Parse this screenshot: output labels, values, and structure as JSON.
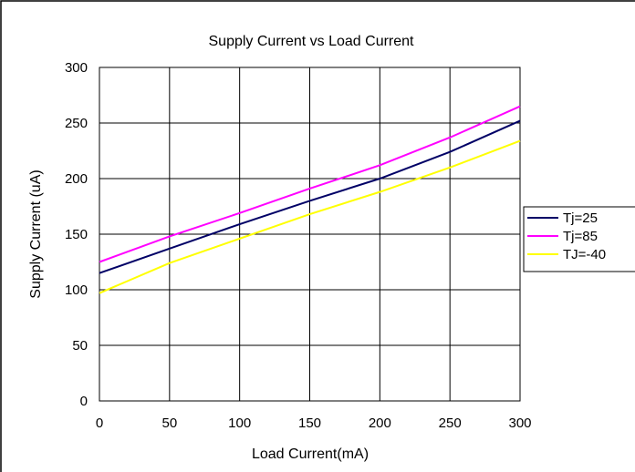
{
  "chart_data": {
    "type": "line",
    "title": "Supply  Current vs Load Current",
    "xlabel": "Load Current(mA)",
    "ylabel": "Supply Current (uA)",
    "xlim": [
      0,
      300
    ],
    "ylim": [
      0,
      300
    ],
    "x_ticks": [
      "0",
      "50",
      "100",
      "150",
      "200",
      "250",
      "300"
    ],
    "y_ticks": [
      "0",
      "50",
      "100",
      "150",
      "200",
      "250",
      "300"
    ],
    "grid": true,
    "legend_position": "right",
    "x": [
      0,
      50,
      100,
      150,
      200,
      250,
      300
    ],
    "series": [
      {
        "name": "Tj=25",
        "color": "#000066",
        "values": [
          115,
          137,
          159,
          180,
          200,
          224,
          252
        ]
      },
      {
        "name": "Tj=85",
        "color": "#ff00ff",
        "values": [
          125,
          148,
          169,
          191,
          212,
          237,
          265
        ]
      },
      {
        "name": "TJ=-40",
        "color": "#ffff00",
        "values": [
          97,
          124,
          146,
          168,
          188,
          210,
          234
        ]
      }
    ]
  }
}
